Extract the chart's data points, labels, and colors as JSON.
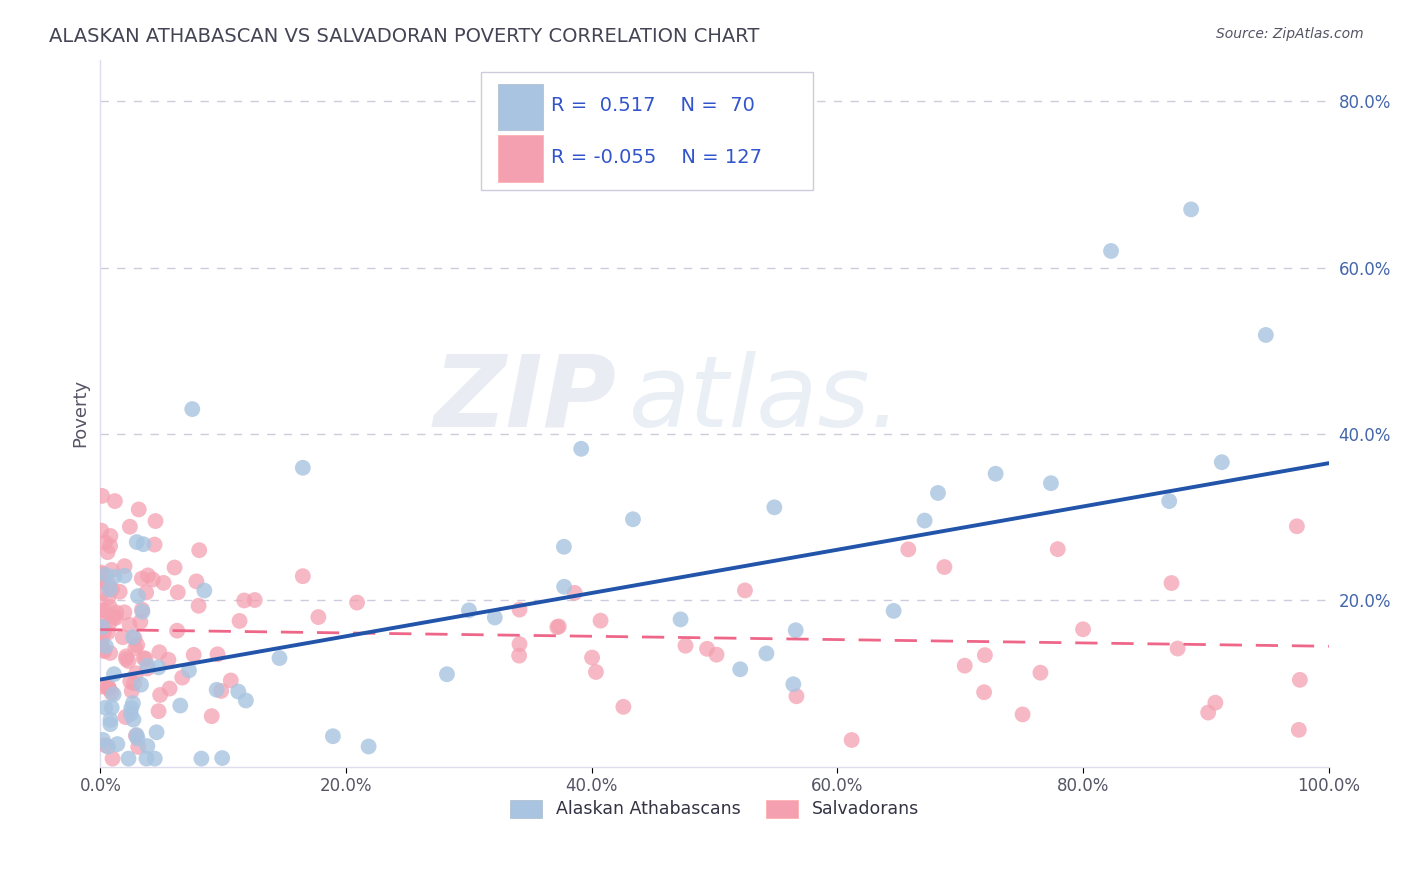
{
  "title": "ALASKAN ATHABASCAN VS SALVADORAN POVERTY CORRELATION CHART",
  "source_text": "Source: ZipAtlas.com",
  "ylabel": "Poverty",
  "xlim": [
    0.0,
    1.0
  ],
  "ylim": [
    0.0,
    0.85
  ],
  "xtick_labels": [
    "0.0%",
    "20.0%",
    "40.0%",
    "60.0%",
    "80.0%",
    "100.0%"
  ],
  "xtick_vals": [
    0.0,
    0.2,
    0.4,
    0.6,
    0.8,
    1.0
  ],
  "ytick_labels": [
    "20.0%",
    "40.0%",
    "60.0%",
    "80.0%"
  ],
  "ytick_vals": [
    0.2,
    0.4,
    0.6,
    0.8
  ],
  "watermark_zip": "ZIP",
  "watermark_atlas": "atlas.",
  "blue_color": "#A8C4E0",
  "pink_color": "#F4A0B0",
  "line_blue": "#2255AA",
  "line_pink": "#EE6688",
  "title_color": "#444455",
  "label_color": "#4466AA",
  "tick_color": "#555566",
  "grid_color": "#CCCCDD",
  "background_color": "#FFFFFF",
  "legend_text_color": "#3355CC",
  "legend_label_color": "#333344",
  "blue_seed": 12,
  "pink_seed": 77,
  "blue_line_y0": 0.105,
  "blue_line_y1": 0.365,
  "pink_line_y0": 0.165,
  "pink_line_y1": 0.145
}
